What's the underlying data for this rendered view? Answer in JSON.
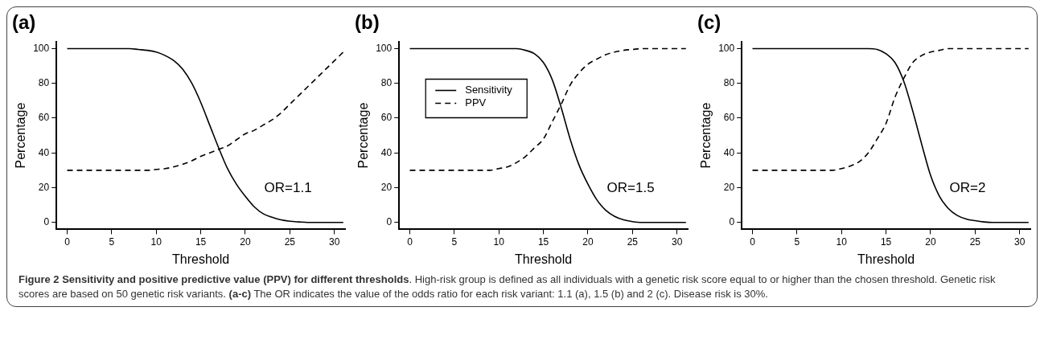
{
  "chart_data": [
    {
      "type": "line",
      "title": "(a)",
      "xlabel": "Threshold",
      "ylabel": "Percentage",
      "x": [
        0,
        1,
        2,
        3,
        4,
        5,
        6,
        7,
        8,
        9,
        10,
        11,
        12,
        13,
        14,
        15,
        16,
        17,
        18,
        19,
        20,
        21,
        22,
        23,
        24,
        25,
        26,
        27,
        28,
        29,
        30,
        31
      ],
      "xlim": [
        -1.2,
        31.2
      ],
      "ylim": [
        -4,
        104
      ],
      "xticks": [
        0,
        5,
        10,
        15,
        20,
        25,
        30
      ],
      "yticks": [
        0,
        20,
        40,
        60,
        80,
        100
      ],
      "grid": false,
      "legend": false,
      "marker": "none",
      "annotations": [
        "OR=1.1"
      ],
      "series": [
        {
          "color": "#000000",
          "line_style": "solid",
          "values": [
            100,
            100,
            100,
            100,
            100,
            100,
            100,
            100,
            99.5,
            99,
            98,
            96,
            93,
            88,
            80,
            69,
            56,
            43,
            31,
            22,
            15,
            9,
            5,
            3,
            1.5,
            0.7,
            0.3,
            0,
            0,
            0,
            0,
            0
          ]
        },
        {
          "color": "#000000",
          "line_style": "dashed",
          "values": [
            30,
            30,
            30,
            30,
            30,
            30,
            30,
            30,
            30,
            30,
            30.5,
            31,
            32,
            33.5,
            35.5,
            38,
            40,
            42,
            44,
            47.5,
            51,
            53,
            56,
            59,
            63,
            68,
            73,
            78,
            83,
            88,
            93,
            98
          ]
        }
      ]
    },
    {
      "type": "line",
      "title": "(b)",
      "xlabel": "Threshold",
      "ylabel": "Percentage",
      "x": [
        0,
        1,
        2,
        3,
        4,
        5,
        6,
        7,
        8,
        9,
        10,
        11,
        12,
        13,
        14,
        15,
        16,
        17,
        18,
        19,
        20,
        21,
        22,
        23,
        24,
        25,
        26,
        27,
        28,
        29,
        30,
        31
      ],
      "xlim": [
        -1.2,
        31.2
      ],
      "ylim": [
        -4,
        104
      ],
      "xticks": [
        0,
        5,
        10,
        15,
        20,
        25,
        30
      ],
      "yticks": [
        0,
        20,
        40,
        60,
        80,
        100
      ],
      "grid": false,
      "legend": "top left",
      "marker": "none",
      "annotations": [
        "OR=1.5"
      ],
      "series": [
        {
          "name": "Sensitivity",
          "color": "#000000",
          "line_style": "solid",
          "values": [
            100,
            100,
            100,
            100,
            100,
            100,
            100,
            100,
            100,
            100,
            100,
            100,
            100,
            99,
            97,
            92,
            82,
            66,
            48,
            33,
            22,
            13,
            7,
            3.5,
            1.5,
            0.5,
            0,
            0,
            0,
            0,
            0,
            0
          ]
        },
        {
          "name": "PPV",
          "color": "#000000",
          "line_style": "dashed",
          "values": [
            30,
            30,
            30,
            30,
            30,
            30,
            30,
            30,
            30,
            30,
            31,
            32,
            34.5,
            38,
            43,
            48,
            58,
            68,
            79,
            86,
            91,
            94,
            96.5,
            98,
            99,
            99.5,
            100,
            100,
            100,
            100,
            100,
            100
          ]
        }
      ]
    },
    {
      "type": "line",
      "title": "(c)",
      "xlabel": "Threshold",
      "ylabel": "Percentage",
      "x": [
        0,
        1,
        2,
        3,
        4,
        5,
        6,
        7,
        8,
        9,
        10,
        11,
        12,
        13,
        14,
        15,
        16,
        17,
        18,
        19,
        20,
        21,
        22,
        23,
        24,
        25,
        26,
        27,
        28,
        29,
        30,
        31
      ],
      "xlim": [
        -1.2,
        31.2
      ],
      "ylim": [
        -4,
        104
      ],
      "xticks": [
        0,
        5,
        10,
        15,
        20,
        25,
        30
      ],
      "yticks": [
        0,
        20,
        40,
        60,
        80,
        100
      ],
      "grid": false,
      "legend": false,
      "marker": "none",
      "annotations": [
        "OR=2",
        "Figure 2 Sensitivity and positive predictive value (PPV) for different thresholds",
        ". High-risk group is defined as all individuals with a genetic risk score equal to or higher than the chosen threshold. Genetic risk scores are based on 50 genetic risk variants. ",
        "(a-c)",
        " The OR indicates the value of the odds ratio for each risk variant: 1.1 (a), 1.5 (b) and 2 (c). Disease risk is 30%."
      ],
      "series": [
        {
          "color": "#000000",
          "line_style": "solid",
          "values": [
            100,
            100,
            100,
            100,
            100,
            100,
            100,
            100,
            100,
            100,
            100,
            100,
            100,
            100,
            99.5,
            97,
            92,
            81,
            64,
            45,
            27,
            15,
            8,
            4,
            2,
            1,
            0.3,
            0,
            0,
            0,
            0,
            0
          ]
        },
        {
          "color": "#000000",
          "line_style": "dashed",
          "values": [
            30,
            30,
            30,
            30,
            30,
            30,
            30,
            30,
            30,
            30,
            31,
            32.5,
            35,
            40,
            48,
            57,
            72,
            83,
            92,
            96,
            98,
            99,
            100,
            100,
            100,
            100,
            100,
            100,
            100,
            100,
            100,
            100
          ]
        }
      ]
    }
  ]
}
